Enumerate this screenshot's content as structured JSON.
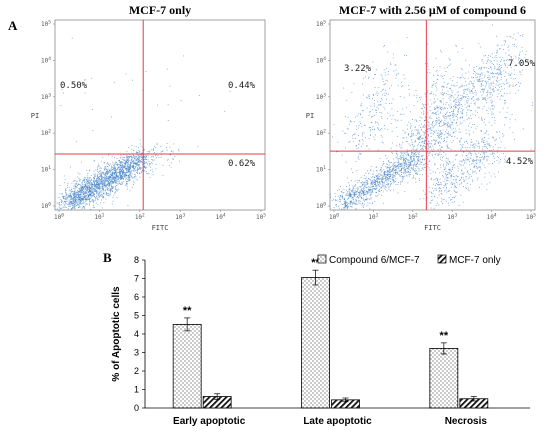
{
  "panel_labels": {
    "a": "A",
    "b": "B"
  },
  "chart_data": [
    {
      "type": "scatter",
      "title": "MCF-7 only",
      "xlabel": "FITC",
      "ylabel": "PI",
      "x_scale": "log",
      "y_scale": "log",
      "x_ticks": [
        "10^0",
        "10^1",
        "10^2",
        "10^3",
        "10^4",
        "10^5"
      ],
      "y_ticks": [
        "10^0",
        "10^1",
        "10^2",
        "10^3",
        "10^4",
        "10^5"
      ],
      "quadrants": {
        "upper_left": "0.50%",
        "upper_right": "0.44%",
        "lower_right": "0.62%"
      },
      "point_color": "#4a86c8",
      "gate_color": "#e8394a"
    },
    {
      "type": "scatter",
      "title": "MCF-7 with 2.56 μM of compound 6",
      "xlabel": "FITC",
      "ylabel": "PI",
      "x_scale": "log",
      "y_scale": "log",
      "x_ticks": [
        "10^0",
        "10^1",
        "10^2",
        "10^3",
        "10^4",
        "10^5"
      ],
      "y_ticks": [
        "10^0",
        "10^1",
        "10^2",
        "10^3",
        "10^4",
        "10^5"
      ],
      "quadrants": {
        "upper_left": "3.22%",
        "upper_right": "7.05%",
        "lower_right": "4.52%"
      },
      "point_color": "#4a86c8",
      "gate_color": "#e8394a"
    },
    {
      "type": "bar",
      "ylabel": "% of Apoptotic cells",
      "categories": [
        "Early apoptotic",
        "Late apoptotic",
        "Necrosis"
      ],
      "ylim": [
        0,
        8
      ],
      "yticks": [
        0,
        1,
        2,
        3,
        4,
        5,
        6,
        7,
        8
      ],
      "legend_position": "top-right",
      "series": [
        {
          "name": "Compound 6/MCF-7",
          "values": [
            4.52,
            7.05,
            3.22
          ],
          "errors": [
            0.35,
            0.4,
            0.3
          ],
          "fill": "dotted",
          "significance": [
            "**",
            "**",
            "**"
          ]
        },
        {
          "name": "MCF-7 only",
          "values": [
            0.62,
            0.44,
            0.5
          ],
          "errors": [
            0.15,
            0.1,
            0.12
          ],
          "fill": "hatched",
          "significance": [
            "",
            "",
            ""
          ]
        }
      ]
    }
  ]
}
